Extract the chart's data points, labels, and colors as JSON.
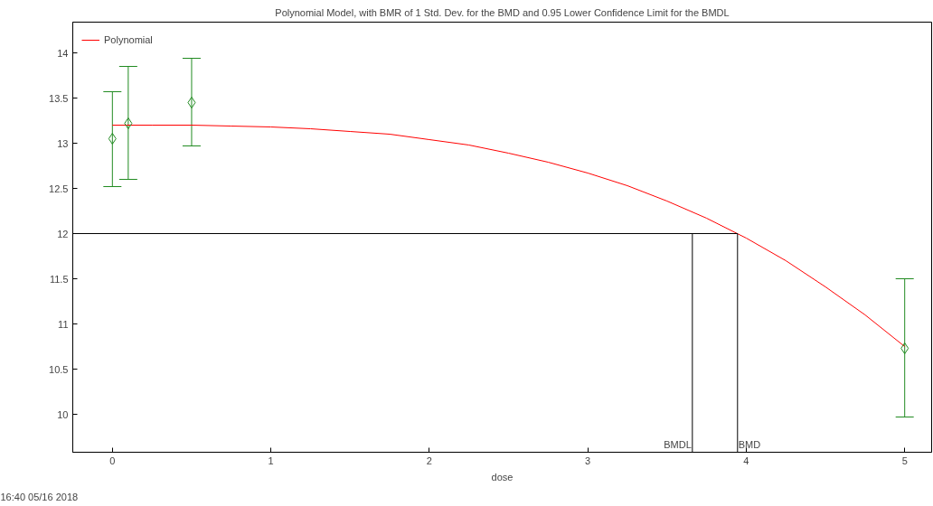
{
  "chart_data": {
    "type": "line",
    "title": "Polynomial Model, with BMR of 1 Std. Dev. for the BMD and 0.95 Lower Confidence Limit for the BMDL",
    "xlabel": "dose",
    "series": [
      {
        "name": "Polynomial",
        "color": "#ff0000",
        "marker": "none",
        "x": [
          0,
          0.25,
          0.5,
          0.75,
          1,
          1.25,
          1.5,
          1.75,
          2,
          2.25,
          2.5,
          2.75,
          3,
          3.25,
          3.5,
          3.75,
          4,
          4.25,
          4.5,
          4.75,
          5
        ],
        "values": [
          13.2,
          13.2,
          13.2,
          13.19,
          13.18,
          13.16,
          13.13,
          13.1,
          13.04,
          12.98,
          12.89,
          12.79,
          12.67,
          12.53,
          12.36,
          12.17,
          11.95,
          11.7,
          11.41,
          11.1,
          10.75
        ]
      },
      {
        "type": "scatter",
        "color": "#228b22",
        "marker": "diamond",
        "x": [
          0,
          0.1,
          0.5,
          5
        ],
        "values": [
          13.05,
          13.22,
          13.45,
          10.73
        ],
        "errors": [
          [
            12.52,
            13.57
          ],
          [
            12.6,
            13.85
          ],
          [
            12.97,
            13.94
          ],
          [
            9.97,
            11.5
          ]
        ]
      }
    ],
    "ref_lines": [
      {
        "axis": "y",
        "value": 12,
        "color": "#000000"
      },
      {
        "axis": "x",
        "value": 3.66,
        "label": "BMDL",
        "color": "#000000"
      },
      {
        "axis": "x",
        "value": 3.945,
        "label": "BMD",
        "color": "#000000"
      }
    ],
    "xlim": [
      -0.25,
      5.17
    ],
    "ylim": [
      9.58,
      14.34
    ],
    "xticks": [
      0,
      1,
      2,
      3,
      4,
      5
    ],
    "yticks": [
      10,
      {
        "value": 10.5,
        "label": "10.5"
      },
      11,
      {
        "value": 11.5,
        "label": "11.5"
      },
      12,
      {
        "value": 12.5,
        "label": "12.5"
      },
      13,
      {
        "value": 13.5,
        "label": "13.5"
      },
      14
    ],
    "grid": false,
    "legend": "top left",
    "annotations": [
      "16:40 05/16 2018"
    ]
  }
}
